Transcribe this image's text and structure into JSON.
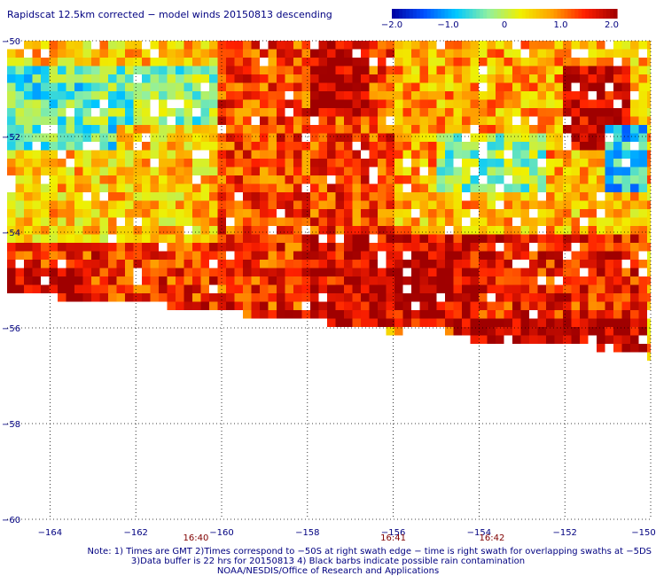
{
  "chart_data": {
    "type": "heatmap",
    "title": "Rapidscat 12.5km corrected − model winds 20150813 descending",
    "colorbar": {
      "ticks": [
        "−2.0",
        "−1.0",
        "0",
        "1.0",
        "2.0"
      ],
      "tick_values": [
        -2.0,
        -1.0,
        0.0,
        1.0,
        2.0
      ],
      "range": [
        -2.0,
        2.0
      ],
      "colors": [
        "#0000a0",
        "#0050ff",
        "#00c8ff",
        "#90f0a0",
        "#f0f000",
        "#ffa000",
        "#ff2000",
        "#a00000"
      ]
    },
    "x_axis": {
      "ticks": [
        "−164",
        "−162",
        "−160",
        "−158",
        "−156",
        "−154",
        "−152",
        "−150"
      ],
      "tick_values": [
        -164,
        -162,
        -160,
        -158,
        -156,
        -154,
        -152,
        -150
      ],
      "range": [
        -165,
        -150
      ]
    },
    "y_axis": {
      "ticks": [
        "−50",
        "−52",
        "−54",
        "−56",
        "−58",
        "−60"
      ],
      "tick_values": [
        -50,
        -52,
        -54,
        -56,
        -58,
        -60
      ],
      "range": [
        -60,
        -50
      ]
    },
    "time_labels": [
      {
        "text": "16:40",
        "lon": -160.6
      },
      {
        "text": "16:41",
        "lon": -156.0
      },
      {
        "text": "16:42",
        "lon": -153.7
      }
    ],
    "grid": true,
    "swath_lower_edge": [
      {
        "lon": -165.0,
        "lat": -55.2
      },
      {
        "lon": -163.5,
        "lat": -55.4
      },
      {
        "lon": -161.5,
        "lat": -55.5
      },
      {
        "lon": -160.0,
        "lat": -55.7
      },
      {
        "lon": -158.5,
        "lat": -55.8
      },
      {
        "lon": -157.5,
        "lat": -55.9
      },
      {
        "lon": -156.0,
        "lat": -56.1
      },
      {
        "lon": -155.0,
        "lat": -56.0
      },
      {
        "lon": -154.5,
        "lat": -56.2
      },
      {
        "lon": -153.0,
        "lat": -56.4
      },
      {
        "lon": -151.5,
        "lat": -56.4
      },
      {
        "lon": -150.0,
        "lat": -56.6
      }
    ],
    "regions": [
      {
        "lon": [
          -165.0,
          -160.0
        ],
        "lat": [
          -54.2,
          -50.0
        ],
        "value": 0.6
      },
      {
        "lon": [
          -165.0,
          -162.5
        ],
        "lat": [
          -52.2,
          -50.6
        ],
        "value": -0.5
      },
      {
        "lon": [
          -163.0,
          -160.0
        ],
        "lat": [
          -51.8,
          -50.5
        ],
        "value": -0.3
      },
      {
        "lon": [
          -160.0,
          -156.0
        ],
        "lat": [
          -54.5,
          -50.0
        ],
        "value": 1.3
      },
      {
        "lon": [
          -158.0,
          -156.5
        ],
        "lat": [
          -51.5,
          -50.0
        ],
        "value": 1.9
      },
      {
        "lon": [
          -156.0,
          -152.0
        ],
        "lat": [
          -53.0,
          -50.0
        ],
        "value": 0.8
      },
      {
        "lon": [
          -155.0,
          -152.5
        ],
        "lat": [
          -53.2,
          -52.0
        ],
        "value": -0.2
      },
      {
        "lon": [
          -152.0,
          -150.0
        ],
        "lat": [
          -53.5,
          -50.0
        ],
        "value": 0.7
      },
      {
        "lon": [
          -152.0,
          -150.5
        ],
        "lat": [
          -52.2,
          -50.6
        ],
        "value": 1.8
      },
      {
        "lon": [
          -151.0,
          -150.0
        ],
        "lat": [
          -53.2,
          -51.8
        ],
        "value": -0.8
      },
      {
        "lon": [
          -165.0,
          -158.0
        ],
        "lat": [
          -55.8,
          -54.2
        ],
        "value": 1.4
      },
      {
        "lon": [
          -165.0,
          -163.0
        ],
        "lat": [
          -55.5,
          -54.7
        ],
        "value": 1.9
      },
      {
        "lon": [
          -158.0,
          -154.0
        ],
        "lat": [
          -56.0,
          -54.0
        ],
        "value": 1.7
      },
      {
        "lon": [
          -156.5,
          -154.5
        ],
        "lat": [
          -55.4,
          -54.6
        ],
        "value": 1.95
      },
      {
        "lon": [
          -154.0,
          -150.0
        ],
        "lat": [
          -56.6,
          -54.0
        ],
        "value": 1.5
      },
      {
        "lon": [
          -154.5,
          -150.0
        ],
        "lat": [
          -56.6,
          -55.8
        ],
        "value": 1.95
      }
    ],
    "notes": [
      "Note: 1) Times are GMT 2)Times correspond to −50S at right swath edge − time is right swath for overlapping swaths at −5DS",
      "3)Data buffer is 22 hrs for 20150813 4) Black barbs indicate possible rain contamination",
      "NOAA/NESDIS/Office of Research and Applications"
    ]
  }
}
